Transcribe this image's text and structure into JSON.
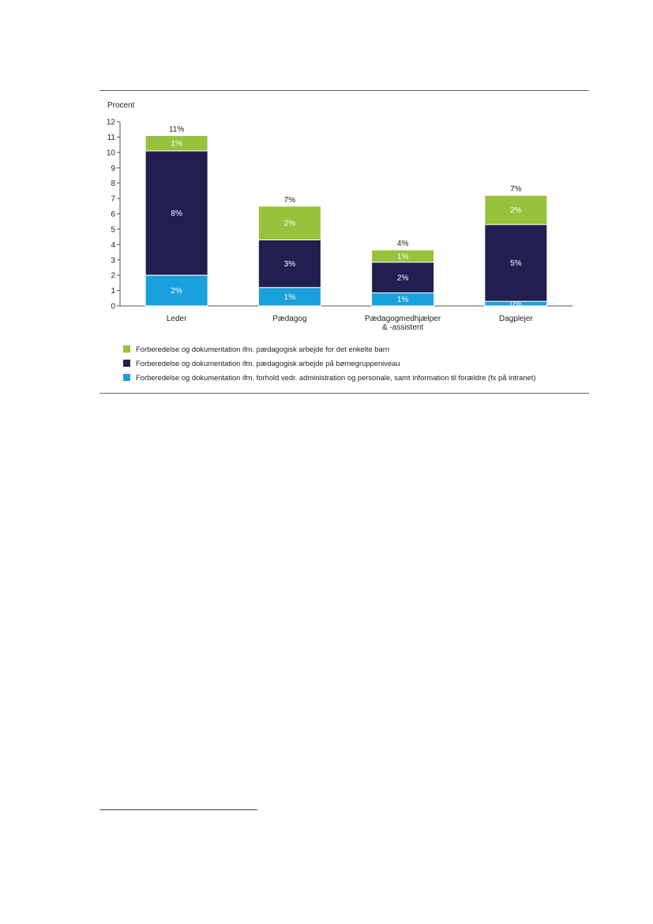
{
  "chart_data": {
    "type": "bar",
    "stacked": true,
    "ylabel": "Procent",
    "ylim": [
      0,
      12
    ],
    "yticks": [
      "0",
      "1",
      "2",
      "3",
      "4",
      "5",
      "6",
      "7",
      "8",
      "9",
      "10",
      "11",
      "12"
    ],
    "grid": false,
    "legend_position": "bottom",
    "categories": [
      [
        "Leder"
      ],
      [
        "Pædagog"
      ],
      [
        "Pædagogmedhjælper",
        "& -assistent"
      ],
      [
        "Dagplejer"
      ]
    ],
    "series": [
      {
        "name": "Forberedelse og dokumentation ifm. forhold vedr. administration og personale, samt information til forældre (fx på intranet)",
        "color": "#1aa0db",
        "values": [
          2.0,
          1.2,
          0.85,
          0.3
        ],
        "labels": [
          "2%",
          "1%",
          "1%",
          "0%"
        ]
      },
      {
        "name": "Forberedelse og dokumentation ifm. pædagogisk arbejde på børnegruppeniveau",
        "color": "#201f4f",
        "values": [
          8.1,
          3.1,
          2.0,
          5.0
        ],
        "labels": [
          "8%",
          "3%",
          "2%",
          "5%"
        ]
      },
      {
        "name": "Forberedelse og dokumentation ifm. pædagogisk arbejde for det enkelte barn",
        "color": "#98c23c",
        "values": [
          1.0,
          2.2,
          0.8,
          1.9
        ],
        "labels": [
          "1%",
          "2%",
          "1%",
          "2%"
        ]
      }
    ],
    "totals": [
      "11%",
      "7%",
      "4%",
      "7%"
    ],
    "legend_order": [
      2,
      1,
      0
    ]
  }
}
